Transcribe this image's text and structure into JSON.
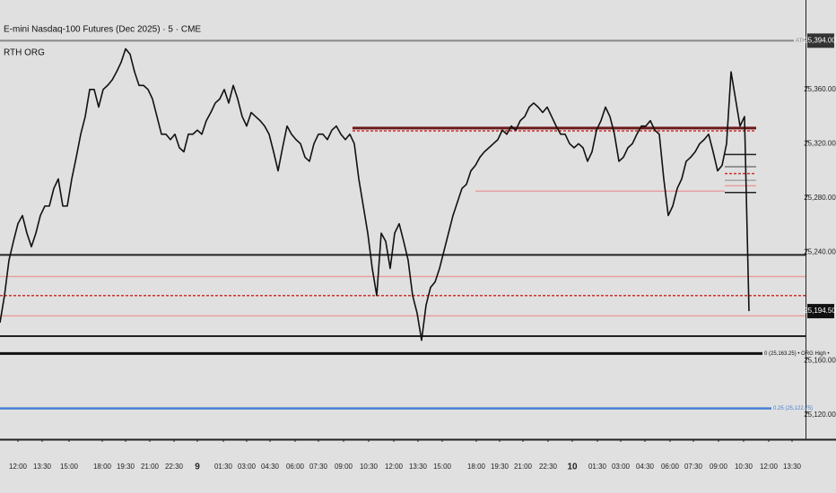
{
  "chart_data": {
    "type": "line",
    "title": "E-mini Nasdaq-100 Futures (Dec 2025) · 5 · CME",
    "subtitle": "RTH ORG",
    "x": [
      0,
      1,
      2,
      3,
      4,
      5,
      6,
      7,
      8,
      9,
      10,
      11,
      12,
      13,
      14,
      15,
      16,
      17,
      18,
      19,
      20,
      21,
      22,
      23,
      24,
      25,
      26,
      27,
      28,
      29,
      30,
      31,
      32,
      33,
      34,
      35,
      36,
      37,
      38,
      39,
      40,
      41,
      42,
      43,
      44,
      45,
      46,
      47,
      48,
      49,
      50,
      51,
      52,
      53,
      54,
      55,
      56,
      57,
      58,
      59,
      60,
      61,
      62,
      63,
      64,
      65,
      66,
      67,
      68,
      69,
      70,
      71,
      72,
      73,
      74,
      75,
      76,
      77,
      78,
      79,
      80,
      81,
      82,
      83,
      84,
      85,
      86,
      87,
      88,
      89,
      90,
      91,
      92,
      93,
      94,
      95,
      96,
      97,
      98,
      99,
      100,
      101,
      102,
      103,
      104,
      105,
      106,
      107,
      108,
      109,
      110,
      111,
      112,
      113,
      114,
      115,
      116,
      117,
      118,
      119,
      120,
      121,
      122,
      123,
      124,
      125,
      126,
      127,
      128,
      129,
      130,
      131,
      132,
      133,
      134,
      135,
      136,
      137,
      138,
      139,
      140,
      141,
      142,
      143,
      144,
      145,
      146,
      147,
      148,
      149,
      150,
      151,
      152,
      153,
      154,
      155,
      156,
      157,
      158,
      159,
      160,
      161,
      162,
      163,
      164,
      165,
      166,
      167
    ],
    "series": [
      {
        "color": "#111111",
        "values": [
          25186,
          25206,
          25232,
          25246,
          25259,
          25265,
          25252,
          25242,
          25252,
          25265,
          25272,
          25272,
          25285,
          25292,
          25272,
          25272,
          25292,
          25308,
          25325,
          25338,
          25358,
          25358,
          25345,
          25358,
          25361,
          25365,
          25371,
          25378,
          25388,
          25384,
          25371,
          25361,
          25361,
          25358,
          25351,
          25338,
          25325,
          25325,
          25321,
          25325,
          25315,
          25312,
          25325,
          25325,
          25328,
          25325,
          25335,
          25341,
          25348,
          25351,
          25358,
          25348,
          25361,
          25351,
          25338,
          25331,
          25341,
          25338,
          25335,
          25331,
          25325,
          25312,
          25298,
          25315,
          25331,
          25325,
          25321,
          25318,
          25308,
          25305,
          25318,
          25325,
          25325,
          25321,
          25328,
          25331,
          25325,
          25321,
          25325,
          25318,
          25292,
          25272,
          25252,
          25226,
          25206,
          25252,
          25246,
          25226,
          25252,
          25259,
          25246,
          25232,
          25206,
          25193,
          25173,
          25199,
          25212,
          25216,
          25226,
          25239,
          25252,
          25265,
          25275,
          25285,
          25288,
          25298,
          25302,
          25308,
          25312,
          25315,
          25318,
          25321,
          25328,
          25325,
          25331,
          25328,
          25335,
          25338,
          25345,
          25348,
          25345,
          25341,
          25345,
          25338,
          25331,
          25325,
          25325,
          25318,
          25315,
          25318,
          25315,
          25305,
          25312,
          25328,
          25335,
          25345,
          25338,
          25325,
          25305,
          25308,
          25315,
          25318,
          25325,
          25331,
          25331,
          25335,
          25328,
          25325,
          25292,
          25265,
          25272,
          25285,
          25292,
          25305,
          25308,
          25312,
          25318,
          25321,
          25325,
          25312,
          25298,
          25302,
          25318,
          25371,
          25351,
          25331,
          25338,
          25194.5
        ]
      }
    ],
    "xlim": [
      0,
      179.6
    ],
    "ylim": [
      25100,
      25424
    ],
    "xticks": [
      {
        "value": 4,
        "label": "12:00"
      },
      {
        "value": 9.4,
        "label": "13:30"
      },
      {
        "value": 15.4,
        "label": "15:00"
      },
      {
        "value": 22.8,
        "label": "18:00"
      },
      {
        "value": 28,
        "label": "19:30"
      },
      {
        "value": 33.4,
        "label": "21:00"
      },
      {
        "value": 38.8,
        "label": "22:30"
      },
      {
        "value": 44,
        "label": "9",
        "bold": true
      },
      {
        "value": 49.8,
        "label": "01:30"
      },
      {
        "value": 55,
        "label": "03:00"
      },
      {
        "value": 60.2,
        "label": "04:30"
      },
      {
        "value": 65.8,
        "label": "06:00"
      },
      {
        "value": 71,
        "label": "07:30"
      },
      {
        "value": 76.6,
        "label": "09:00"
      },
      {
        "value": 82.2,
        "label": "10:30"
      },
      {
        "value": 87.8,
        "label": "12:00"
      },
      {
        "value": 93.2,
        "label": "13:30"
      },
      {
        "value": 98.6,
        "label": "15:00"
      },
      {
        "value": 106.2,
        "label": "18:00"
      },
      {
        "value": 111.4,
        "label": "19:30"
      },
      {
        "value": 116.6,
        "label": "21:00"
      },
      {
        "value": 122.2,
        "label": "22:30"
      },
      {
        "value": 127.6,
        "label": "10",
        "bold": true
      },
      {
        "value": 133.2,
        "label": "01:30"
      },
      {
        "value": 138.4,
        "label": "03:00"
      },
      {
        "value": 143.8,
        "label": "04:30"
      },
      {
        "value": 149.4,
        "label": "06:00"
      },
      {
        "value": 154.6,
        "label": "07:30"
      },
      {
        "value": 160.2,
        "label": "09:00"
      },
      {
        "value": 165.8,
        "label": "10:30"
      },
      {
        "value": 171.4,
        "label": "12:00"
      },
      {
        "value": 176.6,
        "label": "13:30"
      }
    ],
    "yticks": [
      {
        "value": 25360,
        "label": "25,360.00"
      },
      {
        "value": 25320,
        "label": "25,320.00"
      },
      {
        "value": 25280,
        "label": "25,280.00"
      },
      {
        "value": 25240,
        "label": "25,240.00"
      },
      {
        "value": 25160,
        "label": "25,160.00"
      },
      {
        "value": 25120,
        "label": "25,120.00"
      }
    ],
    "levels": [
      {
        "value": 25394,
        "color": "#888888",
        "width": 2,
        "style": "solid",
        "x0": 0,
        "x1": 177,
        "label": "ATH"
      },
      {
        "value": 25329.5,
        "color": "#6b1a1a",
        "width": 3,
        "style": "solid",
        "x0": 78.6,
        "x1": 168.6
      },
      {
        "value": 25327.5,
        "color": "#d03030",
        "width": 1.5,
        "style": "dashed",
        "x0": 78.6,
        "x1": 168.6
      },
      {
        "value": 25310,
        "color": "#222222",
        "width": 1.5,
        "style": "solid",
        "x0": 161.6,
        "x1": 168.6
      },
      {
        "value": 25301,
        "color": "#444444",
        "width": 1,
        "style": "solid",
        "x0": 161.6,
        "x1": 168.6
      },
      {
        "value": 25296,
        "color": "#d03030",
        "width": 1.5,
        "style": "dashed",
        "x0": 161.6,
        "x1": 168.6
      },
      {
        "value": 25291,
        "color": "#888888",
        "width": 1,
        "style": "solid",
        "x0": 161.6,
        "x1": 168.6
      },
      {
        "value": 25287,
        "color": "#e8a0a0",
        "width": 1.5,
        "style": "solid",
        "x0": 161.6,
        "x1": 168.6
      },
      {
        "value": 25283,
        "color": "#e8a0a0",
        "width": 1.5,
        "style": "solid",
        "x0": 106,
        "x1": 161.6
      },
      {
        "value": 25282,
        "color": "#222222",
        "width": 1.5,
        "style": "solid",
        "x0": 161.6,
        "x1": 168.6
      },
      {
        "value": 25236,
        "color": "#222222",
        "width": 2,
        "style": "solid",
        "x0": 0,
        "x1": 179.6
      },
      {
        "value": 25220,
        "color": "#e8a0a0",
        "width": 1.5,
        "style": "solid",
        "x0": 0,
        "x1": 179.6
      },
      {
        "value": 25206,
        "color": "#d03030",
        "width": 1.5,
        "style": "dashed",
        "x0": 0,
        "x1": 179.6
      },
      {
        "value": 25191,
        "color": "#e8a0a0",
        "width": 1.5,
        "style": "solid",
        "x0": 0,
        "x1": 179.6
      },
      {
        "value": 25176,
        "color": "#222222",
        "width": 2,
        "style": "solid",
        "x0": 0,
        "x1": 179.6
      },
      {
        "value": 25163.25,
        "color": "#111111",
        "width": 3,
        "style": "solid",
        "x0": 0,
        "x1": 170,
        "label": "0 (25,163.25) • ORG High •"
      },
      {
        "value": 25122.75,
        "color": "#4a7fd4",
        "width": 2.5,
        "style": "solid",
        "x0": 0,
        "x1": 172,
        "label": "0.25 (25,122.75)"
      }
    ],
    "price_boxes": [
      {
        "value": 25394,
        "label": "25,394.00",
        "color": "#333333"
      },
      {
        "value": 25194.5,
        "label": "25,194.50",
        "color": "#111111"
      }
    ]
  }
}
